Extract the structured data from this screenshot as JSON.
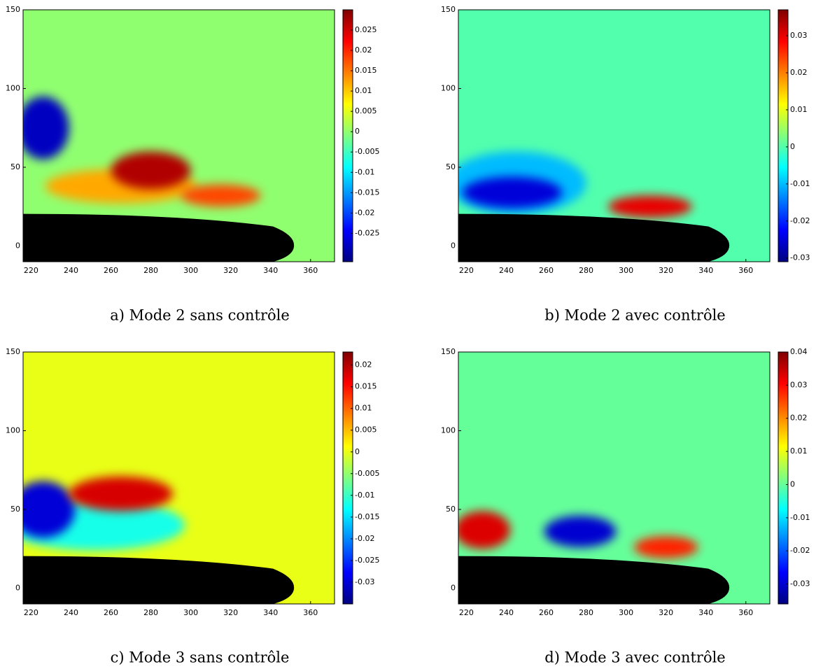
{
  "chart_data": [
    {
      "type": "heatmap",
      "title": "a) Mode 2 sans contrôle",
      "xlim": [
        216,
        372
      ],
      "ylim": [
        -10,
        150
      ],
      "xticks": [
        220,
        240,
        260,
        280,
        300,
        320,
        340,
        360
      ],
      "yticks": [
        0,
        50,
        100,
        150
      ],
      "clim": [
        -0.032,
        0.03
      ],
      "cticks": [
        0.025,
        0.02,
        0.015,
        0.01,
        0.005,
        0,
        -0.005,
        -0.01,
        -0.015,
        -0.02,
        -0.025
      ],
      "blobs": [
        {
          "x": 226,
          "y": 75,
          "rx": 13,
          "ry": 20,
          "value": -0.028
        },
        {
          "x": 265,
          "y": 38,
          "rx": 38,
          "ry": 11,
          "value": 0.012
        },
        {
          "x": 315,
          "y": 32,
          "rx": 20,
          "ry": 7,
          "value": 0.018
        },
        {
          "x": 280,
          "y": 48,
          "rx": 20,
          "ry": 12,
          "value": 0.027
        }
      ]
    },
    {
      "type": "heatmap",
      "title": "b) Mode 2 avec contrôle",
      "xlim": [
        216,
        372
      ],
      "ylim": [
        -10,
        150
      ],
      "xticks": [
        220,
        240,
        260,
        280,
        300,
        320,
        340,
        360
      ],
      "yticks": [
        0,
        50,
        100,
        150
      ],
      "clim": [
        -0.031,
        0.037
      ],
      "cticks": [
        0.03,
        0.02,
        0.01,
        0,
        -0.01,
        -0.02,
        -0.03
      ],
      "blobs": [
        {
          "x": 245,
          "y": 40,
          "rx": 35,
          "ry": 20,
          "value": -0.01
        },
        {
          "x": 243,
          "y": 34,
          "rx": 25,
          "ry": 10,
          "value": -0.025
        },
        {
          "x": 312,
          "y": 25,
          "rx": 21,
          "ry": 7,
          "value": 0.03
        }
      ]
    },
    {
      "type": "heatmap",
      "title": "c) Mode 3 sans contrôle",
      "xlim": [
        216,
        372
      ],
      "ylim": [
        -10,
        150
      ],
      "xticks": [
        220,
        240,
        260,
        280,
        300,
        320,
        340,
        360
      ],
      "yticks": [
        0,
        50,
        100,
        150
      ],
      "clim": [
        -0.035,
        0.023
      ],
      "cticks": [
        0.02,
        0.015,
        0.01,
        0.005,
        0,
        -0.005,
        -0.01,
        -0.015,
        -0.02,
        -0.025,
        -0.03
      ],
      "blobs": [
        {
          "x": 252,
          "y": 40,
          "rx": 45,
          "ry": 16,
          "value": -0.012
        },
        {
          "x": 226,
          "y": 50,
          "rx": 16,
          "ry": 18,
          "value": -0.03
        },
        {
          "x": 265,
          "y": 60,
          "rx": 26,
          "ry": 11,
          "value": 0.018
        }
      ]
    },
    {
      "type": "heatmap",
      "title": "d) Mode 3 avec contrôle",
      "xlim": [
        216,
        372
      ],
      "ylim": [
        -10,
        150
      ],
      "xticks": [
        220,
        240,
        260,
        280,
        300,
        320,
        340,
        360
      ],
      "yticks": [
        0,
        50,
        100,
        150
      ],
      "clim": [
        -0.036,
        0.04
      ],
      "cticks": [
        0.04,
        0.03,
        0.02,
        0.01,
        0,
        -0.01,
        -0.02,
        -0.03
      ],
      "blobs": [
        {
          "x": 228,
          "y": 37,
          "rx": 14,
          "ry": 12,
          "value": 0.033
        },
        {
          "x": 277,
          "y": 36,
          "rx": 18,
          "ry": 10,
          "value": -0.03
        },
        {
          "x": 320,
          "y": 26,
          "rx": 16,
          "ry": 7,
          "value": 0.028
        }
      ]
    }
  ]
}
